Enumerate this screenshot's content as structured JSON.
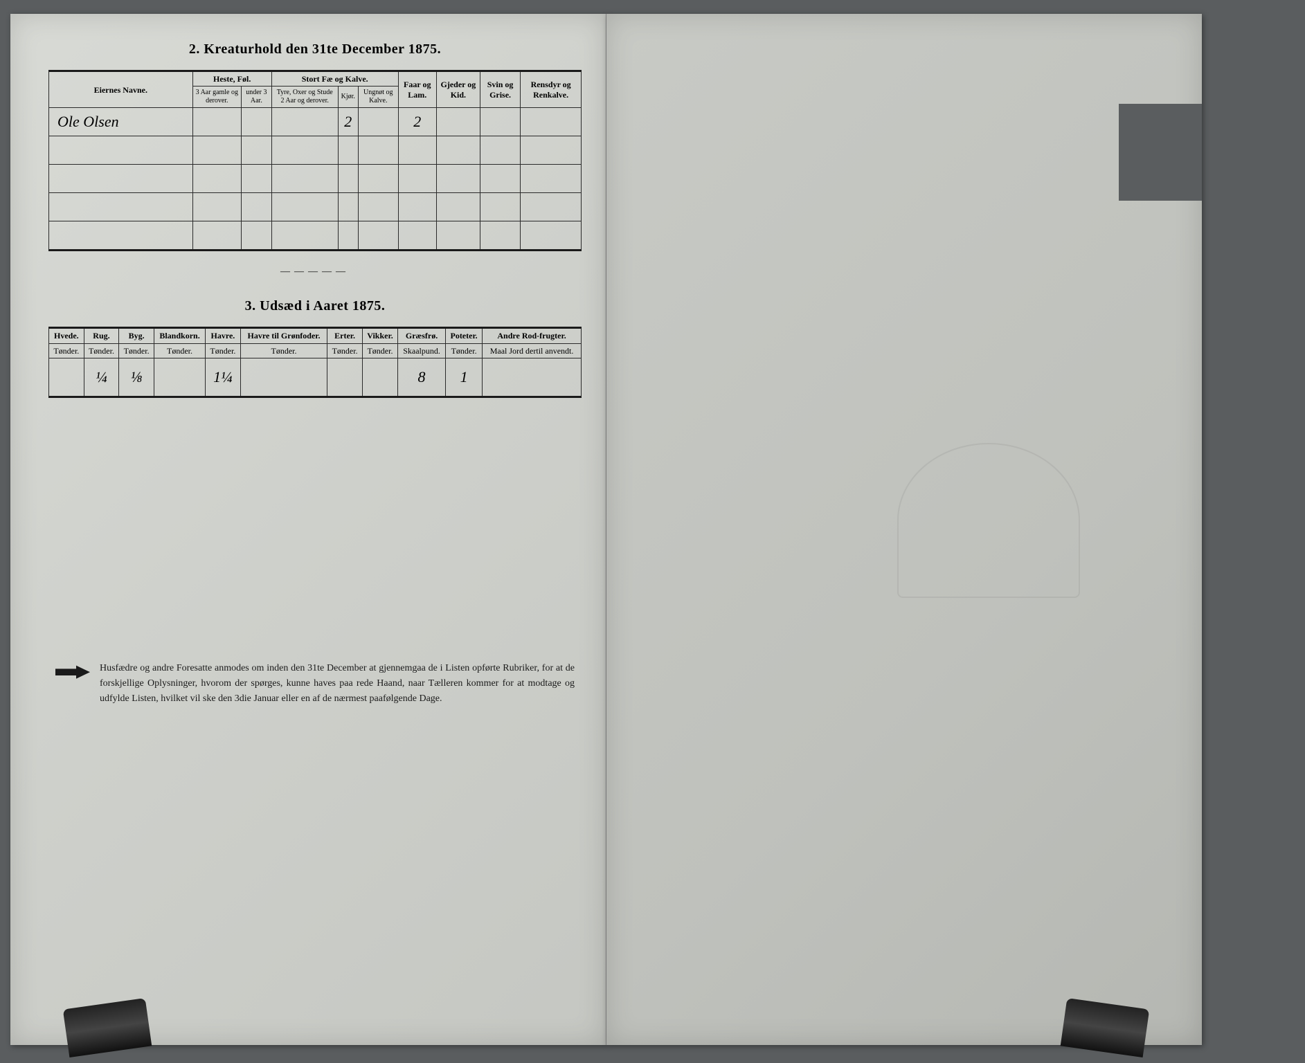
{
  "section2": {
    "title": "2.  Kreaturhold den 31te December 1875.",
    "header_groups": {
      "name": "Eiernes Navne.",
      "heste": "Heste, Føl.",
      "heste_sub1": "3 Aar gamle og derover.",
      "heste_sub2": "under 3 Aar.",
      "stort": "Stort Fæ og Kalve.",
      "stort_sub1": "Tyre, Oxer og Stude 2 Aar og derover.",
      "stort_sub2": "Kjør.",
      "stort_sub3": "Ungnøt og Kalve.",
      "faar": "Faar og Lam.",
      "gjeder": "Gjeder og Kid.",
      "svin": "Svin og Grise.",
      "rensdyr": "Rensdyr og Renkalve."
    },
    "rows": [
      {
        "name": "Ole Olsen",
        "heste1": "",
        "heste2": "",
        "stort1": "",
        "stort2": "2",
        "stort3": "",
        "faar": "2",
        "gjeder": "",
        "svin": "",
        "rensdyr": ""
      },
      {
        "name": "",
        "heste1": "",
        "heste2": "",
        "stort1": "",
        "stort2": "",
        "stort3": "",
        "faar": "",
        "gjeder": "",
        "svin": "",
        "rensdyr": ""
      },
      {
        "name": "",
        "heste1": "",
        "heste2": "",
        "stort1": "",
        "stort2": "",
        "stort3": "",
        "faar": "",
        "gjeder": "",
        "svin": "",
        "rensdyr": ""
      },
      {
        "name": "",
        "heste1": "",
        "heste2": "",
        "stort1": "",
        "stort2": "",
        "stort3": "",
        "faar": "",
        "gjeder": "",
        "svin": "",
        "rensdyr": ""
      },
      {
        "name": "",
        "heste1": "",
        "heste2": "",
        "stort1": "",
        "stort2": "",
        "stort3": "",
        "faar": "",
        "gjeder": "",
        "svin": "",
        "rensdyr": ""
      }
    ]
  },
  "section3": {
    "title": "3.  Udsæd i Aaret 1875.",
    "columns": [
      {
        "label": "Hvede.",
        "unit": "Tønder."
      },
      {
        "label": "Rug.",
        "unit": "Tønder."
      },
      {
        "label": "Byg.",
        "unit": "Tønder."
      },
      {
        "label": "Blandkorn.",
        "unit": "Tønder."
      },
      {
        "label": "Havre.",
        "unit": "Tønder."
      },
      {
        "label": "Havre til Grønfoder.",
        "unit": "Tønder."
      },
      {
        "label": "Erter.",
        "unit": "Tønder."
      },
      {
        "label": "Vikker.",
        "unit": "Tønder."
      },
      {
        "label": "Græsfrø.",
        "unit": "Skaalpund."
      },
      {
        "label": "Poteter.",
        "unit": "Tønder."
      },
      {
        "label": "Andre Rod-frugter.",
        "unit": "Maal Jord dertil anvendt."
      }
    ],
    "row": [
      "",
      "¼",
      "⅛",
      "",
      "1¼",
      "",
      "",
      "",
      "8",
      "1",
      ""
    ]
  },
  "footer": "Husfædre og andre Foresatte anmodes om inden den 31te December at gjennemgaa de i Listen opførte Rubriker, for at de forskjellige Oplysninger, hvorom der spørges, kunne haves paa rede Haand, naar Tælleren kommer for at modtage og udfylde Listen, hvilket vil ske den 3die Januar eller en af de nærmest paafølgende Dage.",
  "divider": "—————"
}
